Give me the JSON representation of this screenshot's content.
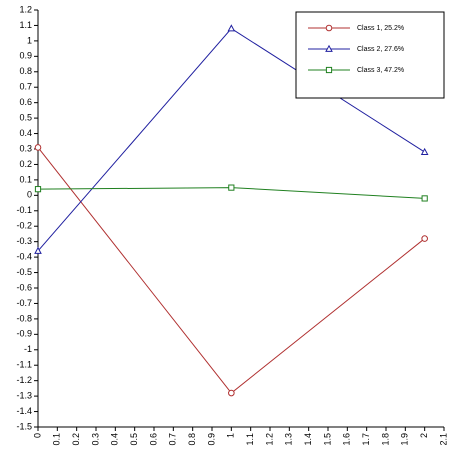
{
  "chart_data": {
    "type": "line",
    "x": [
      0,
      1,
      2
    ],
    "series": [
      {
        "name": "Class 1, 25.2%",
        "color": "#b03030",
        "marker": "circle",
        "values": [
          0.31,
          -1.28,
          -0.28
        ]
      },
      {
        "name": "Class 2, 27.6%",
        "color": "#2020a0",
        "marker": "triangle",
        "values": [
          -0.36,
          1.08,
          0.28
        ]
      },
      {
        "name": "Class 3, 47.2%",
        "color": "#208020",
        "marker": "square",
        "values": [
          0.04,
          0.05,
          -0.02
        ]
      }
    ],
    "xlim": [
      0,
      2.1
    ],
    "xticks": [
      0,
      0.1,
      0.2,
      0.3,
      0.4,
      0.5,
      0.6,
      0.7,
      0.8,
      0.9,
      1,
      1.1,
      1.2,
      1.3,
      1.4,
      1.5,
      1.6,
      1.7,
      1.8,
      1.9,
      2,
      2.1
    ],
    "ylim": [
      -1.5,
      1.2
    ],
    "yticks": [
      1.2,
      1.1,
      1,
      0.9,
      0.8,
      0.7,
      0.6,
      0.5,
      0.4,
      0.3,
      0.2,
      0.1,
      0,
      -0.1,
      -0.2,
      -0.3,
      -0.4,
      -0.5,
      -0.6,
      -0.7,
      -0.8,
      -0.9,
      -1,
      -1.1,
      -1.2,
      -1.3,
      -1.4,
      -1.5
    ],
    "legend": "top-right"
  }
}
